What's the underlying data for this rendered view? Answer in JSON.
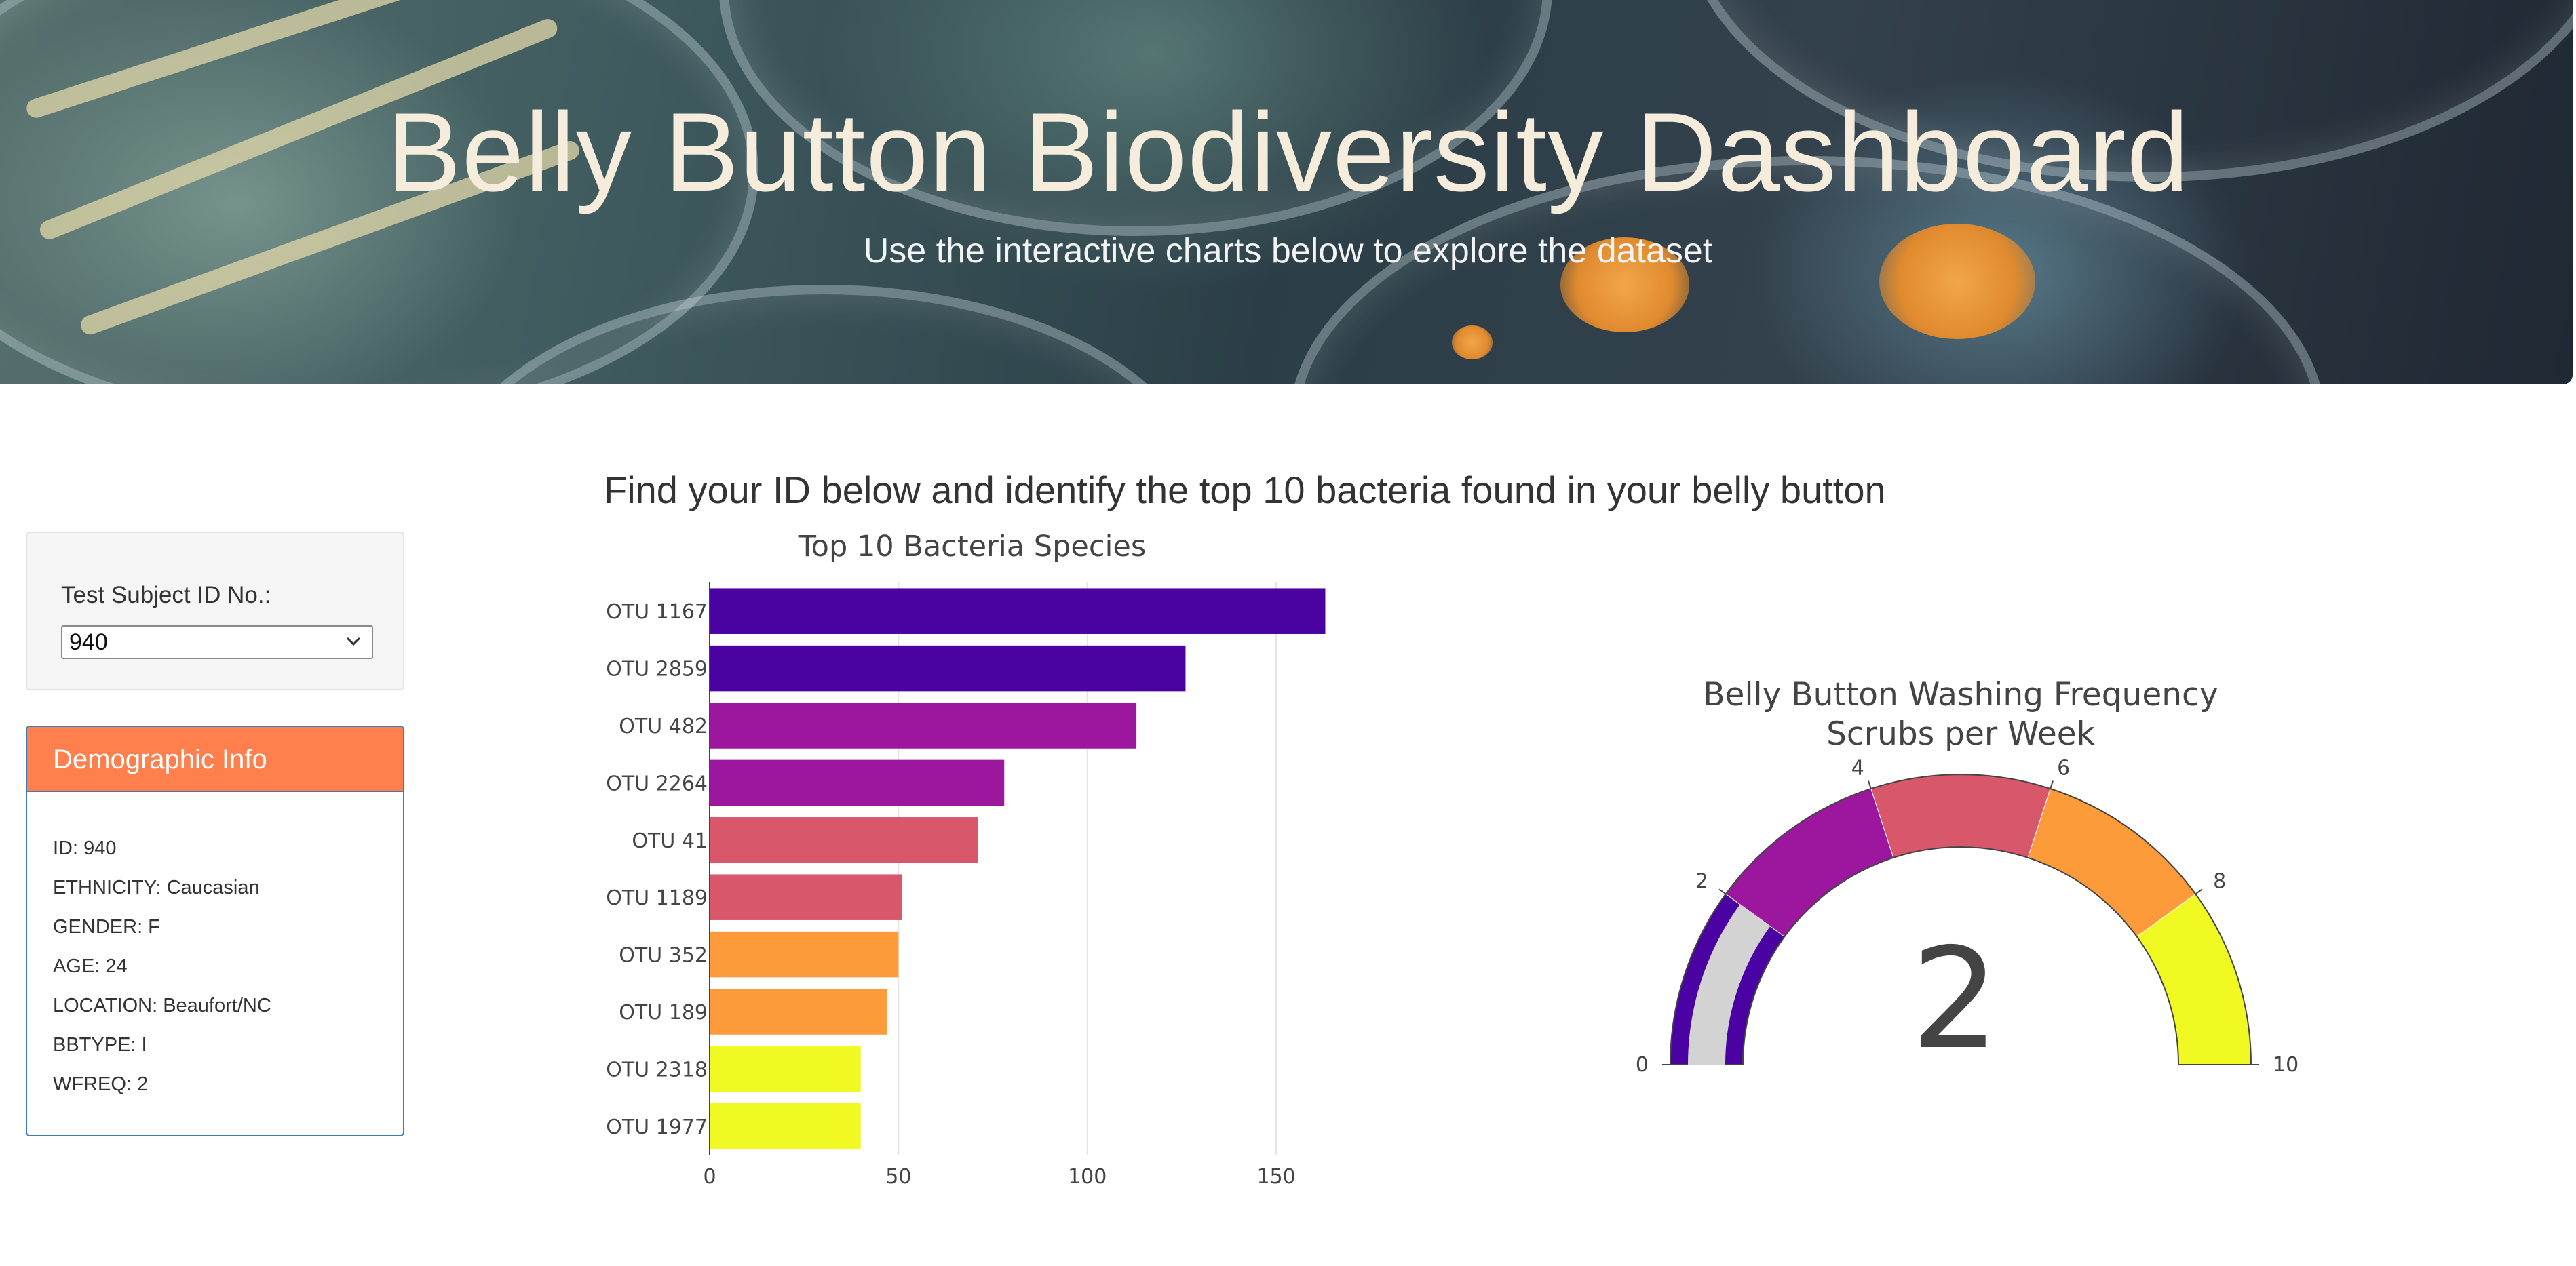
{
  "header": {
    "title": "Belly Button Biodiversity Dashboard",
    "subtitle": "Use the interactive charts below to explore the dataset"
  },
  "selector": {
    "label": "Test Subject ID No.:",
    "selected_value": "940",
    "icon": "chevron-down-icon"
  },
  "demographics": {
    "title": "Demographic Info",
    "lines": [
      "ID: 940",
      "ETHNICITY: Caucasian",
      "GENDER: F",
      "AGE: 24",
      "LOCATION: Beaufort/NC",
      "BBTYPE: I",
      "WFREQ: 2"
    ],
    "colors": {
      "header": "#ff7f4d",
      "border": "#3d7ab8"
    }
  },
  "main": {
    "instructions": "Find your ID below and identify the top 10 bacteria found in your belly button"
  },
  "chart_data": [
    {
      "type": "bar",
      "orientation": "horizontal",
      "title": "Top 10 Bacteria Species",
      "categories": [
        "OTU 1167",
        "OTU 2859",
        "OTU 482",
        "OTU 2264",
        "OTU 41",
        "OTU 1189",
        "OTU 352",
        "OTU 189",
        "OTU 2318",
        "OTU 1977"
      ],
      "values": [
        163,
        126,
        113,
        78,
        71,
        51,
        50,
        47,
        40,
        40
      ],
      "colors": [
        "#4a02a2",
        "#4a02a2",
        "#9c179e",
        "#9c179e",
        "#d8576b",
        "#d8576b",
        "#fd9a3a",
        "#fd9a3a",
        "#f0f921",
        "#f0f921"
      ],
      "xticks": [
        0,
        50,
        100,
        150
      ],
      "xlim": [
        0,
        171
      ],
      "grid": true,
      "xlabel": "",
      "ylabel": ""
    },
    {
      "type": "gauge",
      "title": "Belly Button Washing Frequency",
      "subtitle": "Scrubs per Week",
      "value": 2,
      "range": [
        0,
        10
      ],
      "ticks": [
        0,
        2,
        4,
        6,
        8,
        10
      ],
      "steps": [
        {
          "range": [
            0,
            2
          ],
          "color": "#4a02a2"
        },
        {
          "range": [
            2,
            4
          ],
          "color": "#9c179e"
        },
        {
          "range": [
            4,
            6
          ],
          "color": "#d8576b"
        },
        {
          "range": [
            6,
            8
          ],
          "color": "#fd9a3a"
        },
        {
          "range": [
            8,
            10
          ],
          "color": "#f0f921"
        }
      ],
      "bar_color": "#d3d3d3"
    }
  ]
}
